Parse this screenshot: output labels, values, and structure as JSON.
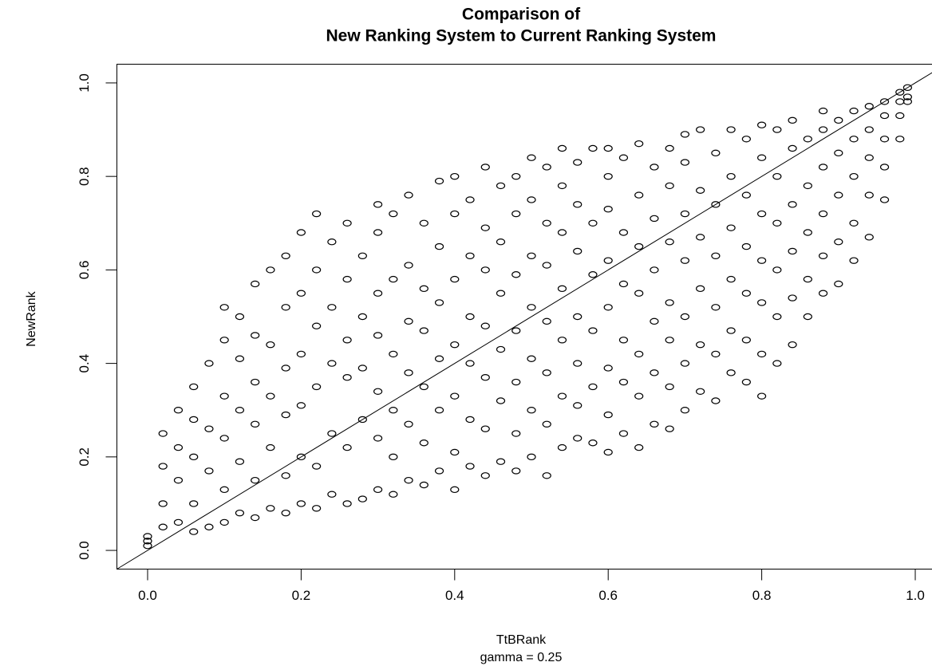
{
  "chart_data": {
    "type": "scatter",
    "title": [
      "Comparison of",
      "New Ranking System to Current Ranking System"
    ],
    "xlabel": "TtBRank",
    "ylabel": "NewRank",
    "subtitle": "gamma = 0.25",
    "xlim": [
      -0.04,
      1.04
    ],
    "ylim": [
      -0.04,
      1.04
    ],
    "xticks": [
      {
        "value": 0,
        "label": "0.0"
      },
      0.2,
      0.4,
      0.6,
      0.8,
      {
        "value": 1,
        "label": "1.0"
      }
    ],
    "yticks": [
      {
        "value": 0,
        "label": "0.0"
      },
      0.2,
      0.4,
      0.6,
      0.8,
      {
        "value": 1,
        "label": "1.0"
      }
    ],
    "color": "#000000",
    "reference_line": "y = x",
    "x": [
      0,
      0,
      0,
      0.02,
      0.02,
      0.02,
      0.02,
      0.04,
      0.04,
      0.04,
      0.04,
      0.06,
      0.06,
      0.06,
      0.06,
      0.06,
      0.08,
      0.08,
      0.08,
      0.08,
      0.1,
      0.1,
      0.1,
      0.1,
      0.1,
      0.1,
      0.12,
      0.12,
      0.12,
      0.12,
      0.12,
      0.14,
      0.14,
      0.14,
      0.14,
      0.14,
      0.14,
      0.16,
      0.16,
      0.16,
      0.16,
      0.16,
      0.18,
      0.18,
      0.18,
      0.18,
      0.18,
      0.18,
      0.2,
      0.2,
      0.2,
      0.2,
      0.2,
      0.2,
      0.22,
      0.22,
      0.22,
      0.22,
      0.22,
      0.22,
      0.24,
      0.24,
      0.24,
      0.24,
      0.24,
      0.26,
      0.26,
      0.26,
      0.26,
      0.26,
      0.26,
      0.28,
      0.28,
      0.28,
      0.28,
      0.28,
      0.3,
      0.3,
      0.3,
      0.3,
      0.3,
      0.3,
      0.3,
      0.32,
      0.32,
      0.32,
      0.32,
      0.32,
      0.32,
      0.34,
      0.34,
      0.34,
      0.34,
      0.34,
      0.34,
      0.36,
      0.36,
      0.36,
      0.36,
      0.36,
      0.36,
      0.38,
      0.38,
      0.38,
      0.38,
      0.38,
      0.38,
      0.4,
      0.4,
      0.4,
      0.4,
      0.4,
      0.4,
      0.4,
      0.42,
      0.42,
      0.42,
      0.42,
      0.42,
      0.42,
      0.44,
      0.44,
      0.44,
      0.44,
      0.44,
      0.44,
      0.44,
      0.46,
      0.46,
      0.46,
      0.46,
      0.46,
      0.46,
      0.48,
      0.48,
      0.48,
      0.48,
      0.48,
      0.48,
      0.48,
      0.5,
      0.5,
      0.5,
      0.5,
      0.5,
      0.5,
      0.5,
      0.52,
      0.52,
      0.52,
      0.52,
      0.52,
      0.52,
      0.52,
      0.54,
      0.54,
      0.54,
      0.54,
      0.54,
      0.54,
      0.54,
      0.56,
      0.56,
      0.56,
      0.56,
      0.56,
      0.56,
      0.56,
      0.58,
      0.58,
      0.58,
      0.58,
      0.58,
      0.58,
      0.6,
      0.6,
      0.6,
      0.6,
      0.6,
      0.6,
      0.6,
      0.6,
      0.62,
      0.62,
      0.62,
      0.62,
      0.62,
      0.62,
      0.64,
      0.64,
      0.64,
      0.64,
      0.64,
      0.64,
      0.64,
      0.66,
      0.66,
      0.66,
      0.66,
      0.66,
      0.66,
      0.68,
      0.68,
      0.68,
      0.68,
      0.68,
      0.68,
      0.68,
      0.7,
      0.7,
      0.7,
      0.7,
      0.7,
      0.7,
      0.7,
      0.72,
      0.72,
      0.72,
      0.72,
      0.72,
      0.72,
      0.74,
      0.74,
      0.74,
      0.74,
      0.74,
      0.74,
      0.76,
      0.76,
      0.76,
      0.76,
      0.76,
      0.76,
      0.78,
      0.78,
      0.78,
      0.78,
      0.78,
      0.78,
      0.8,
      0.8,
      0.8,
      0.8,
      0.8,
      0.8,
      0.8,
      0.82,
      0.82,
      0.82,
      0.82,
      0.82,
      0.82,
      0.84,
      0.84,
      0.84,
      0.84,
      0.84,
      0.84,
      0.86,
      0.86,
      0.86,
      0.86,
      0.86,
      0.88,
      0.88,
      0.88,
      0.88,
      0.88,
      0.88,
      0.9,
      0.9,
      0.9,
      0.9,
      0.9,
      0.92,
      0.92,
      0.92,
      0.92,
      0.92,
      0.94,
      0.94,
      0.94,
      0.94,
      0.94,
      0.96,
      0.96,
      0.96,
      0.96,
      0.96,
      0.98,
      0.98,
      0.98,
      0.98,
      0.99,
      0.99,
      0.99
    ],
    "values": [
      0.01,
      0.02,
      0.03,
      0.05,
      0.1,
      0.18,
      0.25,
      0.06,
      0.15,
      0.22,
      0.3,
      0.04,
      0.1,
      0.2,
      0.28,
      0.35,
      0.05,
      0.17,
      0.26,
      0.4,
      0.06,
      0.13,
      0.24,
      0.33,
      0.45,
      0.52,
      0.08,
      0.19,
      0.3,
      0.41,
      0.5,
      0.07,
      0.15,
      0.27,
      0.36,
      0.46,
      0.57,
      0.09,
      0.22,
      0.33,
      0.44,
      0.6,
      0.08,
      0.16,
      0.29,
      0.39,
      0.52,
      0.63,
      0.1,
      0.2,
      0.31,
      0.42,
      0.55,
      0.68,
      0.09,
      0.18,
      0.35,
      0.48,
      0.6,
      0.72,
      0.12,
      0.25,
      0.4,
      0.52,
      0.66,
      0.1,
      0.22,
      0.37,
      0.45,
      0.58,
      0.7,
      0.11,
      0.28,
      0.39,
      0.5,
      0.63,
      0.13,
      0.24,
      0.34,
      0.46,
      0.55,
      0.68,
      0.74,
      0.12,
      0.2,
      0.3,
      0.42,
      0.58,
      0.72,
      0.15,
      0.27,
      0.38,
      0.49,
      0.61,
      0.76,
      0.14,
      0.23,
      0.35,
      0.47,
      0.56,
      0.7,
      0.17,
      0.3,
      0.41,
      0.53,
      0.65,
      0.79,
      0.13,
      0.21,
      0.33,
      0.44,
      0.58,
      0.72,
      0.8,
      0.18,
      0.28,
      0.4,
      0.5,
      0.63,
      0.75,
      0.16,
      0.26,
      0.37,
      0.48,
      0.6,
      0.69,
      0.82,
      0.19,
      0.32,
      0.43,
      0.55,
      0.66,
      0.78,
      0.17,
      0.25,
      0.36,
      0.47,
      0.59,
      0.72,
      0.8,
      0.2,
      0.3,
      0.41,
      0.52,
      0.63,
      0.75,
      0.84,
      0.16,
      0.27,
      0.38,
      0.49,
      0.61,
      0.7,
      0.82,
      0.22,
      0.33,
      0.45,
      0.56,
      0.68,
      0.78,
      0.86,
      0.24,
      0.31,
      0.4,
      0.5,
      0.64,
      0.74,
      0.83,
      0.23,
      0.35,
      0.47,
      0.59,
      0.7,
      0.86,
      0.21,
      0.29,
      0.39,
      0.52,
      0.62,
      0.73,
      0.8,
      0.86,
      0.25,
      0.36,
      0.45,
      0.57,
      0.68,
      0.84,
      0.22,
      0.33,
      0.42,
      0.55,
      0.65,
      0.76,
      0.87,
      0.27,
      0.38,
      0.49,
      0.6,
      0.71,
      0.82,
      0.26,
      0.35,
      0.45,
      0.53,
      0.66,
      0.78,
      0.86,
      0.3,
      0.4,
      0.5,
      0.62,
      0.72,
      0.83,
      0.89,
      0.34,
      0.44,
      0.56,
      0.67,
      0.77,
      0.9,
      0.32,
      0.42,
      0.52,
      0.63,
      0.74,
      0.85,
      0.38,
      0.47,
      0.58,
      0.69,
      0.8,
      0.9,
      0.36,
      0.45,
      0.55,
      0.65,
      0.76,
      0.88,
      0.33,
      0.42,
      0.53,
      0.62,
      0.72,
      0.84,
      0.91,
      0.4,
      0.5,
      0.6,
      0.7,
      0.8,
      0.9,
      0.44,
      0.54,
      0.64,
      0.74,
      0.86,
      0.92,
      0.5,
      0.58,
      0.68,
      0.78,
      0.88,
      0.55,
      0.63,
      0.72,
      0.82,
      0.9,
      0.94,
      0.57,
      0.66,
      0.76,
      0.85,
      0.92,
      0.62,
      0.7,
      0.8,
      0.88,
      0.94,
      0.67,
      0.76,
      0.84,
      0.9,
      0.95,
      0.75,
      0.82,
      0.88,
      0.93,
      0.96,
      0.88,
      0.93,
      0.96,
      0.98,
      0.96,
      0.97,
      0.99
    ]
  }
}
